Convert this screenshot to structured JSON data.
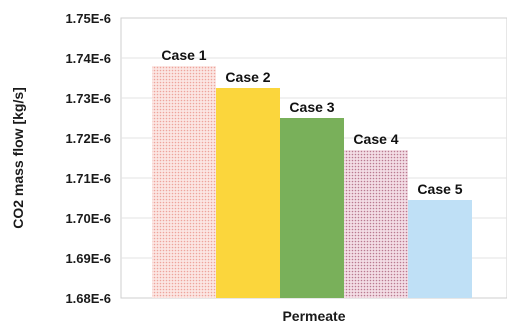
{
  "chart_data": {
    "type": "bar",
    "title": "",
    "xlabel": "Permeate",
    "ylabel": "CO2 mass flow [kg/s]",
    "ylim": [
      1.68e-06,
      1.75e-06
    ],
    "yticks": [
      "1.68E-6",
      "1.69E-6",
      "1.70E-6",
      "1.71E-6",
      "1.72E-6",
      "1.73E-6",
      "1.74E-6",
      "1.75E-6"
    ],
    "grid": true,
    "categories": [
      "Case 1",
      "Case 2",
      "Case 3",
      "Case 4",
      "Case 5"
    ],
    "values": [
      1.738e-06,
      1.7325e-06,
      1.725e-06,
      1.717e-06,
      1.7045e-06
    ],
    "colors": [
      "#f6c6c0",
      "#fbd63c",
      "#79b05a",
      "#d8a9b8",
      "#bfe0f6"
    ],
    "patterns": [
      "dots",
      "solid",
      "solid",
      "dots",
      "solid"
    ]
  }
}
